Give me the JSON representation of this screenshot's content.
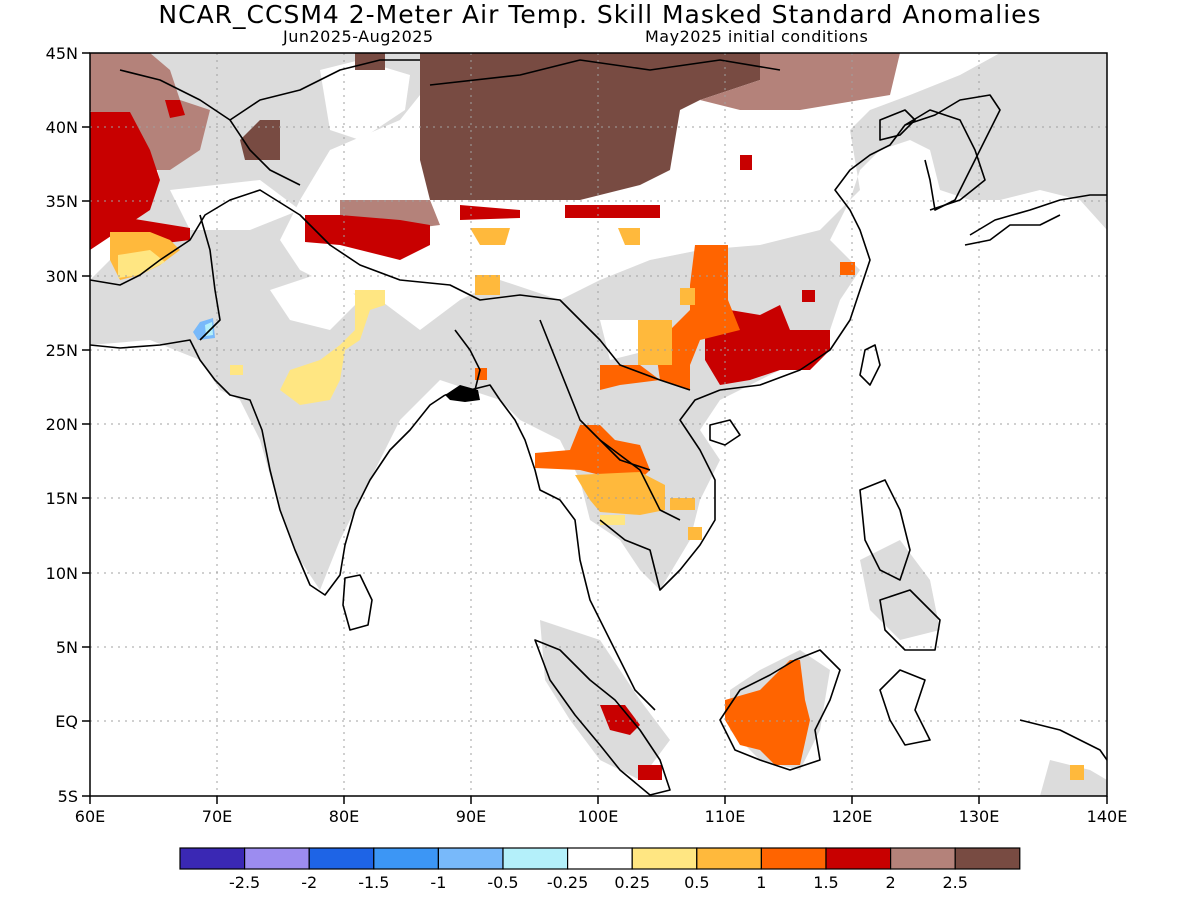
{
  "header": {
    "title": "NCAR_CCSM4 2-Meter Air Temp. Skill Masked Standard Anomalies",
    "period": "Jun2025-Aug2025",
    "init": "May2025 initial conditions"
  },
  "axes": {
    "lon_labels": [
      "60E",
      "70E",
      "80E",
      "90E",
      "100E",
      "110E",
      "120E",
      "130E",
      "140E"
    ],
    "lat_labels": [
      "45N",
      "40N",
      "35N",
      "30N",
      "25N",
      "20N",
      "15N",
      "10N",
      "5N",
      "EQ",
      "5S"
    ]
  },
  "colorbar": {
    "labels": [
      "-2.5",
      "-2",
      "-1.5",
      "-1",
      "-0.5",
      "-0.25",
      "0.25",
      "0.5",
      "1",
      "1.5",
      "2",
      "2.5"
    ],
    "colors": [
      "#3a28b4",
      "#9c8cf0",
      "#1e64e6",
      "#3c96f5",
      "#78b9fa",
      "#b4f0fa",
      "#ffffff",
      "#ffe682",
      "#ffb93c",
      "#ff6400",
      "#c80000",
      "#b4827a",
      "#784b42"
    ]
  },
  "map_colors": {
    "land_gray": "#dcdcdc",
    "coast": "#000000",
    "grid": "#a0a0a0"
  }
}
